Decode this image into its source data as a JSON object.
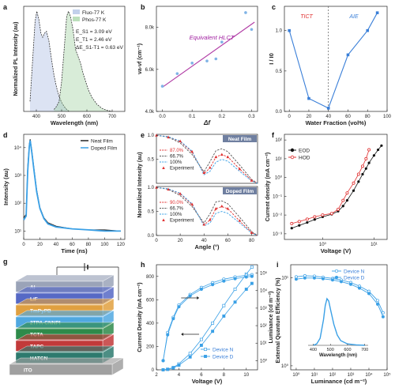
{
  "figure": {
    "panels": [
      "a",
      "b",
      "c",
      "d",
      "e",
      "f",
      "g",
      "h",
      "i"
    ]
  },
  "chart_data": [
    {
      "id": "a",
      "type": "area",
      "xlabel": "Wavelength (nm)",
      "ylabel": "Normalized PL Intensity (au)",
      "xlim": [
        350,
        750
      ],
      "ylim": [
        0,
        1.05
      ],
      "xticks": [
        "400",
        "500",
        "600",
        "700"
      ],
      "legend": [
        "Fluo-77 K",
        "Phos-77 K"
      ],
      "annotations": [
        "E_S1 = 3.09 eV",
        "E_T1 = 2.46 eV",
        "ΔE_S1-T1 = 0.63 eV"
      ],
      "series": [
        {
          "name": "Fluo-77 K",
          "color": "#9ab0dd",
          "x": [
            375,
            385,
            395,
            402,
            410,
            418,
            425,
            432,
            440,
            450,
            460,
            470,
            480,
            490,
            500,
            510,
            520,
            530
          ],
          "y": [
            0.1,
            0.5,
            0.9,
            1.0,
            0.92,
            0.78,
            0.74,
            0.78,
            0.8,
            0.7,
            0.52,
            0.36,
            0.24,
            0.15,
            0.09,
            0.05,
            0.02,
            0.0
          ]
        },
        {
          "name": "Phos-77 K",
          "color": "#8fc98f",
          "x": [
            470,
            480,
            490,
            500,
            510,
            520,
            527,
            535,
            545,
            555,
            565,
            575,
            585,
            595,
            605,
            620,
            640,
            660,
            680,
            700
          ],
          "y": [
            0.02,
            0.05,
            0.1,
            0.3,
            0.62,
            0.95,
            1.0,
            0.95,
            0.82,
            0.62,
            0.55,
            0.48,
            0.38,
            0.3,
            0.22,
            0.14,
            0.07,
            0.03,
            0.01,
            0.0
          ]
        }
      ]
    },
    {
      "id": "b",
      "type": "scatter",
      "xlabel": "Δf",
      "ylabel": "νa-νf (cm⁻¹)",
      "xlim": [
        -0.02,
        0.32
      ],
      "ylim": [
        4000,
        9000
      ],
      "xticks": [
        "0.0",
        "0.1",
        "0.2",
        "0.3"
      ],
      "yticks": [
        "4.0k",
        "6.0k",
        "8.0k"
      ],
      "annotation": "Equivalent HLCT",
      "points": {
        "x": [
          0.0,
          0.05,
          0.1,
          0.15,
          0.18,
          0.2,
          0.28,
          0.3
        ],
        "y": [
          5200,
          5800,
          6300,
          6400,
          6500,
          7300,
          8700,
          7900
        ]
      },
      "fit": {
        "x": [
          0.0,
          0.31
        ],
        "y": [
          5150,
          8250
        ],
        "color": "#b03aa4"
      }
    },
    {
      "id": "c",
      "type": "line",
      "xlabel": "Water Fraction (vol%)",
      "ylabel": "I / I0",
      "xlim": [
        -5,
        100
      ],
      "ylim": [
        0,
        1.3
      ],
      "xticks": [
        "0",
        "20",
        "40",
        "60",
        "80",
        "100"
      ],
      "yticks": [
        "0.0",
        "0.5",
        "1.0"
      ],
      "annotations": [
        "TICT",
        "AIE"
      ],
      "divider_x": 40,
      "x": [
        0,
        20,
        40,
        60,
        80,
        90
      ],
      "y": [
        1.0,
        0.16,
        0.04,
        0.7,
        1.0,
        1.22
      ]
    },
    {
      "id": "d",
      "type": "line",
      "xlabel": "Time (ns)",
      "ylabel": "Intensity (au)",
      "xlim": [
        0,
        125
      ],
      "yscale": "log",
      "ylim": [
        5,
        30000
      ],
      "xticks": [
        "0",
        "20",
        "40",
        "60",
        "80",
        "100",
        "120"
      ],
      "yticks": [
        "10¹",
        "10²",
        "10³",
        "10⁴"
      ],
      "legend": [
        "Neat Film",
        "Doped Film"
      ],
      "series": [
        {
          "name": "Neat Film",
          "color": "#222222",
          "x": [
            0,
            3,
            5,
            7,
            8,
            10,
            13,
            16,
            20,
            25,
            30,
            40,
            60,
            80,
            100,
            120
          ],
          "y": [
            30,
            40,
            2000,
            14000,
            20000,
            8000,
            1500,
            300,
            70,
            30,
            20,
            15,
            12,
            11,
            11,
            10
          ]
        },
        {
          "name": "Doped Film",
          "color": "#3aa0e6",
          "x": [
            0,
            3,
            5,
            7,
            8,
            10,
            13,
            16,
            20,
            25,
            30,
            40,
            60,
            80,
            100,
            120
          ],
          "y": [
            25,
            35,
            1500,
            12000,
            18000,
            7000,
            1300,
            260,
            65,
            28,
            18,
            14,
            12,
            11,
            10,
            10
          ]
        }
      ]
    },
    {
      "id": "e",
      "type": "line",
      "xlabel": "Angle (°)",
      "ylabel": "Normalized Intensity (au)",
      "xticks": [
        "0",
        "20",
        "40",
        "60",
        "80"
      ],
      "subplots": [
        {
          "title": "Neat Film",
          "yticks": [
            "0.5",
            "1.0"
          ],
          "legend": [
            "87.0%",
            "66.7%",
            "100%",
            "Experiment"
          ],
          "series": [
            {
              "name": "87.0%",
              "color": "#e03030",
              "x": [
                0,
                10,
                20,
                30,
                40,
                45,
                50,
                55,
                60,
                70,
                80,
                85
              ],
              "y": [
                1.0,
                0.97,
                0.87,
                0.65,
                0.2,
                0.32,
                0.55,
                0.6,
                0.55,
                0.3,
                0.06,
                0.0
              ]
            },
            {
              "name": "66.7%",
              "color": "#555555",
              "x": [
                0,
                10,
                20,
                30,
                40,
                45,
                50,
                55,
                60,
                70,
                80,
                85
              ],
              "y": [
                1.0,
                0.96,
                0.84,
                0.6,
                0.24,
                0.45,
                0.68,
                0.72,
                0.66,
                0.38,
                0.08,
                0.0
              ]
            },
            {
              "name": "100%",
              "color": "#3aa0e6",
              "x": [
                0,
                10,
                20,
                30,
                40,
                45,
                50,
                55,
                60,
                70,
                80,
                85
              ],
              "y": [
                1.0,
                0.97,
                0.88,
                0.67,
                0.18,
                0.25,
                0.44,
                0.5,
                0.46,
                0.25,
                0.05,
                0.0
              ]
            },
            {
              "name": "Experiment",
              "color": "#e03030",
              "x": [
                0,
                10,
                20,
                30,
                40,
                45,
                50,
                55,
                60,
                70,
                80
              ],
              "y": [
                1.0,
                0.96,
                0.88,
                0.66,
                0.22,
                0.33,
                0.55,
                0.6,
                0.55,
                0.3,
                0.06
              ]
            }
          ]
        },
        {
          "title": "Doped Film",
          "yticks": [
            "0.0",
            "0.5",
            "1.0"
          ],
          "legend": [
            "90.0%",
            "66.7%",
            "100%",
            "Experiment"
          ],
          "series": [
            {
              "name": "90.0%",
              "color": "#e03030",
              "x": [
                0,
                10,
                20,
                30,
                40,
                45,
                50,
                55,
                60,
                70,
                80,
                85
              ],
              "y": [
                1.0,
                0.97,
                0.87,
                0.64,
                0.22,
                0.32,
                0.56,
                0.6,
                0.56,
                0.3,
                0.06,
                0.0
              ]
            },
            {
              "name": "66.7%",
              "color": "#555555",
              "x": [
                0,
                10,
                20,
                30,
                40,
                45,
                50,
                55,
                60,
                70,
                80,
                85
              ],
              "y": [
                1.0,
                0.96,
                0.83,
                0.6,
                0.26,
                0.45,
                0.7,
                0.72,
                0.66,
                0.38,
                0.08,
                0.0
              ]
            },
            {
              "name": "100%",
              "color": "#3aa0e6",
              "x": [
                0,
                10,
                20,
                30,
                40,
                45,
                50,
                55,
                60,
                70,
                80,
                85
              ],
              "y": [
                1.0,
                0.97,
                0.88,
                0.66,
                0.2,
                0.26,
                0.46,
                0.5,
                0.46,
                0.26,
                0.05,
                0.0
              ]
            },
            {
              "name": "Experiment",
              "color": "#e03030",
              "x": [
                0,
                10,
                20,
                30,
                40,
                45,
                50,
                55,
                60,
                70,
                80
              ],
              "y": [
                1.0,
                0.96,
                0.87,
                0.65,
                0.23,
                0.33,
                0.56,
                0.61,
                0.56,
                0.31,
                0.06
              ]
            }
          ]
        }
      ]
    },
    {
      "id": "f",
      "type": "scatter",
      "xlabel": "Voltage (V)",
      "ylabel": "Current density (mA cm⁻²)",
      "xscale": "log",
      "yscale": "log",
      "xticks": [
        "10⁰",
        "10¹"
      ],
      "yticks": [
        "10⁻³",
        "10⁻²",
        "10⁻¹",
        "10⁰",
        "10¹",
        "10²"
      ],
      "legend": [
        "EOD",
        "HOD"
      ],
      "series": [
        {
          "name": "EOD",
          "color": "#111111",
          "x": [
            0.25,
            0.35,
            0.5,
            0.7,
            1.0,
            1.5,
            2.0,
            2.5,
            3,
            4,
            5,
            6,
            7,
            8,
            10,
            12,
            14
          ],
          "y": [
            0.002,
            0.0028,
            0.004,
            0.0058,
            0.008,
            0.011,
            0.016,
            0.03,
            0.06,
            0.2,
            0.6,
            1.5,
            3,
            6,
            15,
            30,
            50
          ]
        },
        {
          "name": "HOD",
          "color": "#e03030",
          "x": [
            0.25,
            0.35,
            0.5,
            0.7,
            1.0,
            1.5,
            2.0,
            2.5,
            3,
            4,
            5,
            6,
            7,
            8
          ],
          "y": [
            0.0035,
            0.0045,
            0.006,
            0.008,
            0.01,
            0.012,
            0.02,
            0.06,
            0.15,
            0.5,
            1.5,
            4,
            10,
            30
          ]
        }
      ]
    },
    {
      "id": "g",
      "type": "table",
      "layers": [
        "Al",
        "LiF",
        "TmPyPB",
        "2TPA-CNNPI",
        "TCTA",
        "TAPC",
        "HATCN",
        "ITO"
      ],
      "colors": [
        "#9aa3b8",
        "#5669c5",
        "#e0a040",
        "#50a8e0",
        "#2e8a4a",
        "#c23a3a",
        "#2d7a6e",
        "#a0a0a0"
      ]
    },
    {
      "id": "h",
      "type": "line",
      "xlabel": "Voltage (V)",
      "ylabel": "Current Density (mA cm⁻²)",
      "y2label": "Luminance (cd m⁻²)",
      "xlim": [
        2,
        11
      ],
      "ylim": [
        0,
        900
      ],
      "xticks": [
        "2",
        "4",
        "6",
        "8",
        "10"
      ],
      "yticks": [
        "0",
        "200",
        "400",
        "600",
        "800"
      ],
      "y2ticks": [
        "10⁰",
        "10¹",
        "10²",
        "10³",
        "10⁴",
        "10⁵"
      ],
      "legend": [
        "Device N",
        "Device D"
      ],
      "series": [
        {
          "name": "Device N (J)",
          "color": "#3aa0e6",
          "filled": false,
          "x": [
            2.6,
            3,
            3.5,
            4,
            5,
            6,
            7,
            8,
            9,
            10,
            10.5
          ],
          "y": [
            0,
            5,
            20,
            50,
            140,
            260,
            400,
            550,
            690,
            820,
            880
          ]
        },
        {
          "name": "Device D (J)",
          "color": "#3aa0e6",
          "filled": true,
          "x": [
            2.6,
            3,
            3.5,
            4,
            5,
            6,
            7,
            8,
            9,
            10,
            10.5
          ],
          "y": [
            0,
            4,
            16,
            40,
            110,
            210,
            330,
            460,
            580,
            690,
            740
          ]
        },
        {
          "name": "Device N (L)",
          "color": "#3aa0e6",
          "filled": false,
          "x": [
            2.6,
            3,
            3.5,
            4,
            5,
            6,
            7,
            8,
            9,
            10,
            10.5
          ],
          "y": [
            1,
            40,
            300,
            1500,
            6000,
            15000,
            28000,
            45000,
            60000,
            75000,
            80000
          ]
        },
        {
          "name": "Device D (L)",
          "color": "#3aa0e6",
          "filled": true,
          "x": [
            2.6,
            3,
            3.5,
            4,
            5,
            6,
            7,
            8,
            9,
            10,
            10.5
          ],
          "y": [
            1,
            30,
            250,
            1200,
            5000,
            12000,
            22000,
            35000,
            48000,
            60000,
            65000
          ]
        }
      ]
    },
    {
      "id": "i",
      "type": "line",
      "xlabel": "Luminance (cd m⁻²)",
      "ylabel": "External Quantum Efficiency (%)",
      "xscale": "log",
      "yscale": "log",
      "xticks": [
        "10⁰",
        "10¹",
        "10²",
        "10³",
        "10⁴",
        "10⁵"
      ],
      "yticks": [
        "10⁰",
        "10¹"
      ],
      "legend": [
        "Device N",
        "Device D"
      ],
      "series": [
        {
          "name": "Device N",
          "color": "#3aa0e6",
          "filled": false,
          "x": [
            1,
            3,
            10,
            30,
            100,
            300,
            1000,
            3000,
            10000,
            30000,
            60000
          ],
          "y": [
            10.2,
            10.5,
            10.4,
            10.1,
            9.8,
            9.4,
            8.8,
            8.0,
            7.0,
            5.5,
            4.0
          ]
        },
        {
          "name": "Device D",
          "color": "#3aa0e6",
          "filled": true,
          "x": [
            1,
            3,
            10,
            30,
            100,
            300,
            1000,
            3000,
            10000,
            30000,
            60000
          ],
          "y": [
            9.6,
            9.9,
            9.9,
            9.7,
            9.4,
            9.0,
            8.4,
            7.6,
            6.6,
            5.0,
            3.6
          ]
        }
      ],
      "inset": {
        "xlabel": "Wavelength (nm)",
        "xticks": [
          "400",
          "500",
          "600",
          "700"
        ],
        "x": [
          400,
          420,
          440,
          460,
          470,
          480,
          490,
          500,
          520,
          540,
          560,
          600,
          650,
          700
        ],
        "y": [
          0.0,
          0.03,
          0.15,
          0.55,
          0.85,
          1.0,
          0.95,
          0.78,
          0.45,
          0.22,
          0.1,
          0.03,
          0.01,
          0.0
        ]
      }
    }
  ]
}
